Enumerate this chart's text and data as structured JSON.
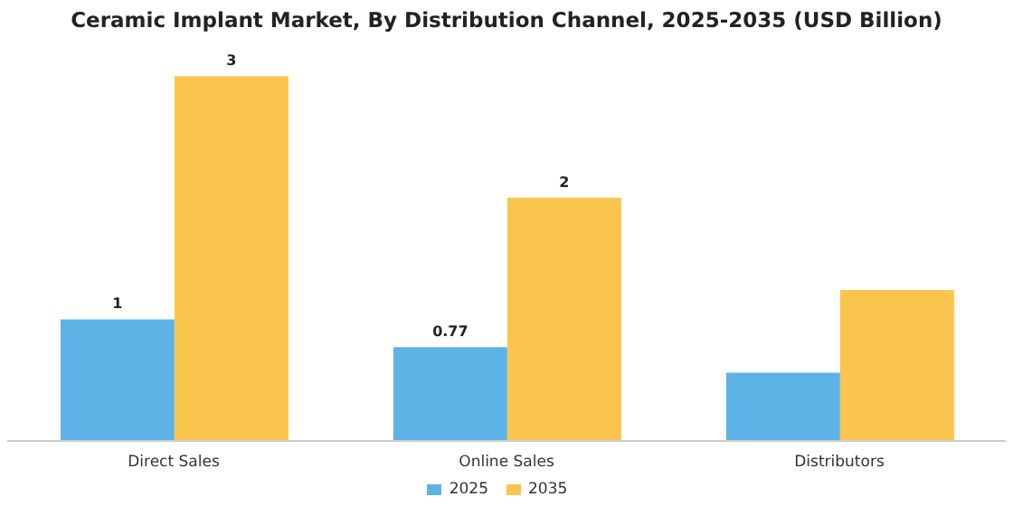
{
  "chart_data": {
    "type": "bar",
    "title": "Ceramic Implant Market, By Distribution Channel, 2025-2035 (USD Billion)",
    "categories": [
      "Direct Sales",
      "Online Sales",
      "Distributors"
    ],
    "legend": "bottom",
    "grid": false,
    "series": [
      {
        "name": "2025",
        "color": "#5db3e6",
        "values": [
          1,
          0.77,
          0.56
        ],
        "value_labels": [
          "1",
          "0.77",
          null
        ]
      },
      {
        "name": "2035",
        "color": "#f9c54e",
        "values": [
          3,
          2,
          1.24
        ],
        "value_labels": [
          "3",
          "2",
          null
        ]
      }
    ]
  }
}
